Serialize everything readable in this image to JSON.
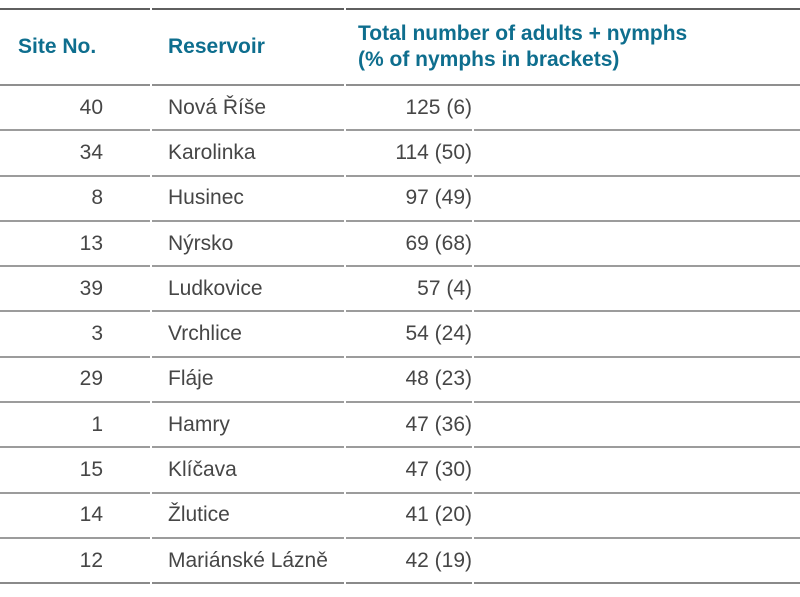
{
  "colors": {
    "header_text": "#0e6e8e",
    "body_text": "#464646",
    "row_line": "#9c9c9c",
    "top_line": "#5f5f5f"
  },
  "table": {
    "header": {
      "site_no": "Site No.",
      "reservoir": "Reservoir",
      "total_line1": "Total number of adults + nymphs",
      "total_line2": "(% of nymphs in brackets)"
    },
    "rows": [
      {
        "site_no": "40",
        "reservoir": "Nová Říše",
        "total": "125 (6)"
      },
      {
        "site_no": "34",
        "reservoir": "Karolinka",
        "total": "114 (50)"
      },
      {
        "site_no": "8",
        "reservoir": "Husinec",
        "total": "97 (49)"
      },
      {
        "site_no": "13",
        "reservoir": "Nýrsko",
        "total": "69 (68)"
      },
      {
        "site_no": "39",
        "reservoir": "Ludkovice",
        "total": "57 (4)"
      },
      {
        "site_no": "3",
        "reservoir": "Vrchlice",
        "total": "54 (24)"
      },
      {
        "site_no": "29",
        "reservoir": "Fláje",
        "total": "48 (23)"
      },
      {
        "site_no": "1",
        "reservoir": "Hamry",
        "total": "47 (36)"
      },
      {
        "site_no": "15",
        "reservoir": "Klíčava",
        "total": "47 (30)"
      },
      {
        "site_no": "14",
        "reservoir": "Žlutice",
        "total": "41 (20)"
      },
      {
        "site_no": "12",
        "reservoir": "Mariánské Lázně",
        "total": "42 (19)"
      }
    ]
  }
}
